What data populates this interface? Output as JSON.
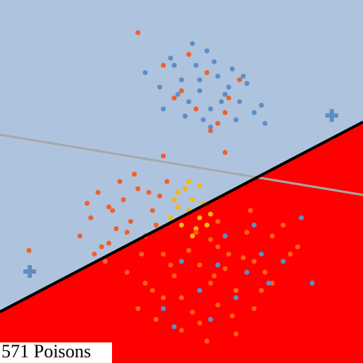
{
  "chart_data": {
    "type": "scatter",
    "label": "571 Poisons",
    "background": "#aec3de",
    "xlim": [
      0,
      100
    ],
    "ylim": [
      0,
      100
    ],
    "boundary": {
      "x": [
        0,
        100
      ],
      "y": [
        14.1,
        66.4
      ],
      "color": "#000000",
      "fill_below": "#ff0000"
    },
    "reference_line": {
      "x": [
        0,
        100
      ],
      "y": [
        62.9,
        46.3
      ],
      "color": "#a8a8a8"
    },
    "series": [
      {
        "color": "#5b8fc7",
        "marker": "circle",
        "x": [
          40,
          44,
          47,
          50,
          52,
          54,
          55,
          57,
          58,
          60,
          62,
          64,
          66,
          68,
          70,
          72,
          45,
          49,
          53,
          56,
          59,
          63,
          67,
          51,
          55,
          61,
          65,
          48,
          58,
          73
        ],
        "y": [
          80,
          76,
          84,
          78,
          72,
          82,
          75,
          86,
          70,
          79,
          74,
          81,
          72,
          77,
          69,
          71,
          70,
          74,
          88,
          67,
          83,
          76,
          79,
          68,
          78,
          72,
          67,
          82,
          65,
          66
        ]
      },
      {
        "color": "#f0602a",
        "marker": "circle",
        "x": [
          38,
          45,
          50,
          54,
          57,
          60,
          63,
          66,
          52,
          48,
          62,
          58,
          45,
          62
        ],
        "y": [
          91,
          82,
          75,
          70,
          80,
          66,
          73,
          78,
          85,
          73,
          69,
          64,
          57,
          58
        ]
      },
      {
        "color": "#f0602a",
        "marker": "circle",
        "x": [
          22,
          25,
          28,
          30,
          32,
          34,
          36,
          38,
          40,
          42,
          44,
          26,
          30,
          35,
          39,
          43,
          24,
          33,
          37,
          41,
          29,
          8,
          46,
          31,
          27
        ],
        "y": [
          35,
          40,
          32,
          43,
          37,
          45,
          39,
          48,
          35,
          42,
          46,
          30,
          33,
          36,
          30,
          38,
          44,
          50,
          52,
          47,
          28,
          31,
          50,
          42,
          47
        ]
      },
      {
        "color": "#f5b80f",
        "marker": "circle",
        "x": [
          47,
          49,
          50,
          52,
          53,
          54,
          55,
          56,
          57,
          49,
          51,
          53,
          55,
          58,
          48,
          52
        ],
        "y": [
          40,
          43,
          38,
          42,
          45,
          37,
          40,
          44,
          38,
          47,
          48,
          35,
          49,
          41,
          45,
          50
        ]
      },
      {
        "color": "#ff5f14",
        "marker": "circle",
        "x": [
          35,
          40,
          45,
          50,
          55,
          60,
          65,
          70,
          75,
          80,
          38,
          43,
          48,
          53,
          58,
          63,
          68,
          73,
          78,
          50,
          55,
          60,
          65,
          70,
          45,
          58,
          62,
          52,
          67,
          72,
          57,
          47,
          42,
          60,
          75,
          82,
          64,
          54,
          59,
          69
        ],
        "y": [
          25,
          22,
          30,
          18,
          27,
          32,
          20,
          28,
          35,
          30,
          15,
          12,
          24,
          14,
          22,
          30,
          36,
          25,
          38,
          9,
          11,
          16,
          8,
          15,
          18,
          34,
          26,
          31,
          29,
          20,
          6,
          27,
          20,
          39,
          22,
          32,
          13,
          36,
          24,
          42
        ]
      },
      {
        "color": "#5b8fc7",
        "marker": "circle",
        "x": [
          45,
          50,
          55,
          62,
          68,
          72,
          78,
          83,
          58,
          65,
          74,
          60,
          48,
          86,
          70
        ],
        "y": [
          15,
          28,
          20,
          35,
          25,
          30,
          28,
          40,
          12,
          18,
          22,
          27,
          10,
          22,
          38
        ]
      },
      {
        "color": "#5b8fc7",
        "marker": "plus",
        "x": [
          91.4,
          8.2
        ],
        "y": [
          68.2,
          25.2
        ]
      }
    ]
  }
}
